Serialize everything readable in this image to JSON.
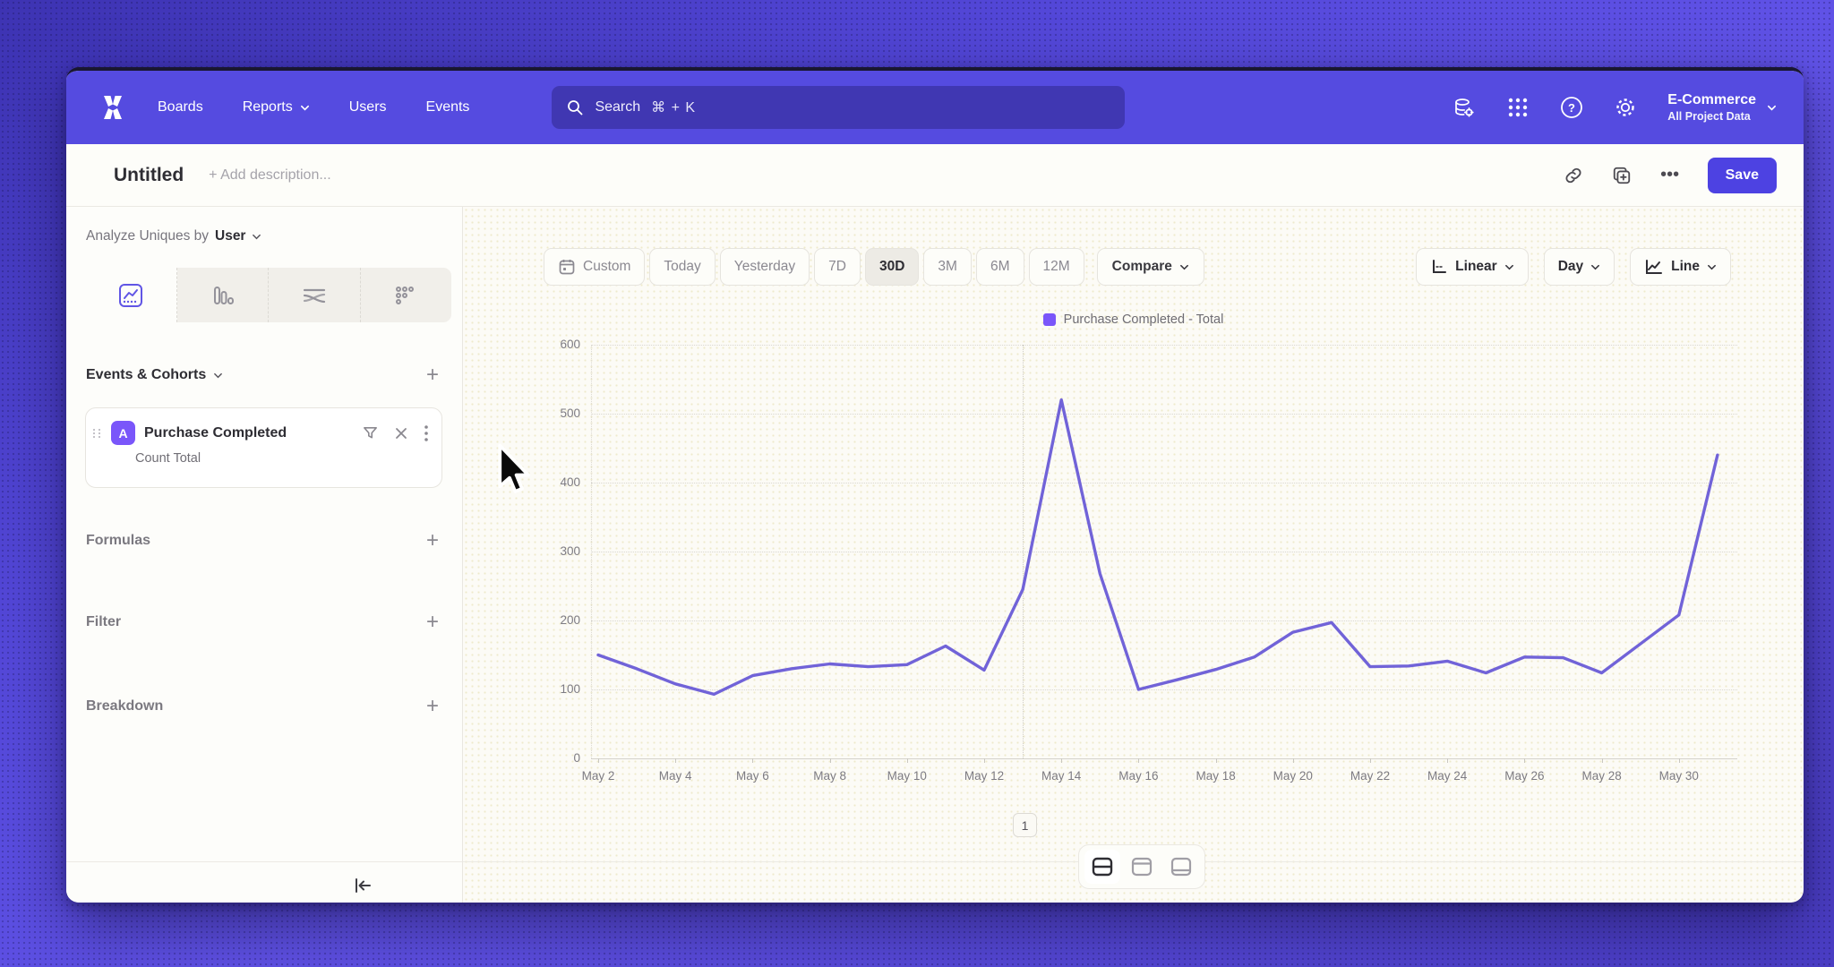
{
  "header": {
    "nav": {
      "boards": "Boards",
      "reports": "Reports",
      "users": "Users",
      "events": "Events"
    },
    "search": {
      "label": "Search",
      "shortcut": "⌘ + K"
    },
    "project": {
      "name": "E-Commerce",
      "scope": "All Project Data"
    }
  },
  "titlebar": {
    "title": "Untitled",
    "add_description": "+ Add description...",
    "save_label": "Save"
  },
  "sidebar": {
    "analyze_prefix": "Analyze Uniques by",
    "analyze_value": "User",
    "events_header": "Events & Cohorts",
    "event_card": {
      "badge": "A",
      "name": "Purchase Completed",
      "metric": "Count Total"
    },
    "sections": {
      "formulas": "Formulas",
      "filter": "Filter",
      "breakdown": "Breakdown"
    }
  },
  "controls": {
    "ranges": [
      "Custom",
      "Today",
      "Yesterday",
      "7D",
      "30D",
      "3M",
      "6M",
      "12M"
    ],
    "selected_range": "30D",
    "compare": "Compare",
    "scale": "Linear",
    "interval": "Day",
    "chart_type": "Line"
  },
  "pagination": "1",
  "icons": [
    "mixpanel-logo",
    "search-icon",
    "data-gear-icon",
    "apps-grid-icon",
    "help-icon",
    "gear-icon",
    "chevron-down-icon",
    "link-icon",
    "duplicate-icon",
    "ellipsis-icon",
    "insights-tab-icon",
    "bar-tab-icon",
    "flow-tab-icon",
    "retention-tab-icon",
    "plus-icon",
    "drag-handle-icon",
    "filter-funnel-icon",
    "close-icon",
    "kebab-icon",
    "calendar-icon",
    "axis-icon",
    "line-chart-icon",
    "collapse-left-icon",
    "split-horizontal-icon",
    "panel-top-icon",
    "panel-bottom-icon",
    "cursor-arrow"
  ],
  "colors": {
    "nav_purple": "#554be0",
    "accent": "#7a56fa",
    "line": "#7163d8",
    "save": "#4d42e2"
  },
  "chart_data": {
    "type": "line",
    "title": "",
    "legend_position": "top-center",
    "grid": "horizontal-dotted",
    "categories": [
      "May 2",
      "May 3",
      "May 4",
      "May 5",
      "May 6",
      "May 7",
      "May 8",
      "May 9",
      "May 10",
      "May 11",
      "May 12",
      "May 13",
      "May 14",
      "May 15",
      "May 16",
      "May 17",
      "May 18",
      "May 19",
      "May 20",
      "May 21",
      "May 22",
      "May 23",
      "May 24",
      "May 25",
      "May 26",
      "May 27",
      "May 28",
      "May 29",
      "May 30",
      "May 31"
    ],
    "series": [
      {
        "name": "Purchase Completed - Total",
        "color": "#7163d8",
        "values": [
          150,
          130,
          108,
          93,
          120,
          130,
          137,
          133,
          136,
          163,
          128,
          245,
          520,
          268,
          100,
          114,
          129,
          147,
          183,
          197,
          133,
          134,
          141,
          124,
          147,
          146,
          124,
          166,
          208,
          440
        ]
      }
    ],
    "ylim": [
      0,
      600
    ],
    "yticks": [
      0,
      100,
      200,
      300,
      400,
      500,
      600
    ],
    "xtick_every": 2,
    "vertical_marker_category": "May 13"
  }
}
